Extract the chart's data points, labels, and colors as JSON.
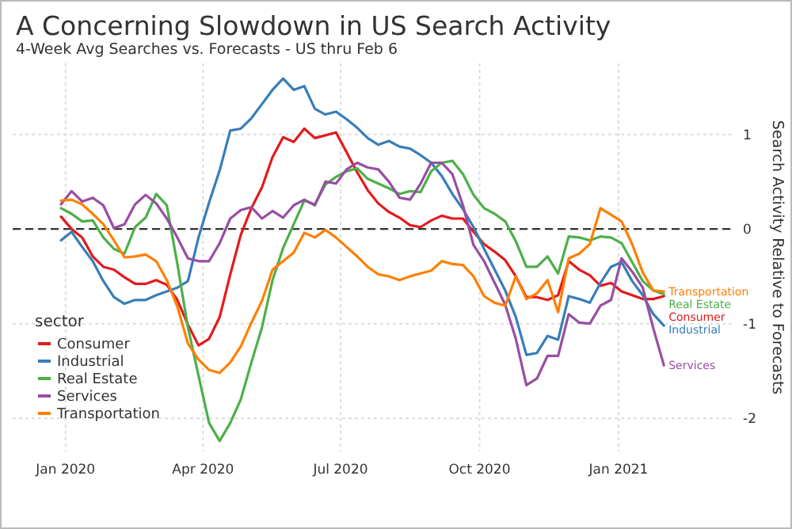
{
  "chart_data": {
    "type": "line",
    "title": "A Concerning Slowdown in US Search Activity",
    "subtitle": "4-Week Avg Searches vs. Forecasts - US thru Feb 6",
    "ylabel": "Search Activity Relative to Forecasts",
    "legend_title": "sector",
    "legend": "bottom left",
    "grid": true,
    "line_style": "solid",
    "marker": "none",
    "xlim": [
      "2019-11-27",
      "2021-03-18"
    ],
    "ylim": [
      -2.35,
      1.75
    ],
    "xticks": [
      {
        "value": "2020-01-01",
        "label": "Jan 2020"
      },
      {
        "value": "2020-04-01",
        "label": "Apr 2020"
      },
      {
        "value": "2020-07-01",
        "label": "Jul 2020"
      },
      {
        "value": "2020-10-01",
        "label": "Oct 2020"
      },
      {
        "value": "2021-01-01",
        "label": "Jan 2021"
      }
    ],
    "yticks": [
      -2,
      -1,
      0,
      1
    ],
    "ref_lines": [
      {
        "axis": "y",
        "value": 0,
        "color": "#333333",
        "line_style": "dashed"
      }
    ],
    "x": [
      "2019-12-29",
      "2020-01-05",
      "2020-01-12",
      "2020-01-19",
      "2020-01-26",
      "2020-02-02",
      "2020-02-09",
      "2020-02-16",
      "2020-02-23",
      "2020-03-01",
      "2020-03-08",
      "2020-03-15",
      "2020-03-22",
      "2020-03-29",
      "2020-04-05",
      "2020-04-12",
      "2020-04-19",
      "2020-04-26",
      "2020-05-03",
      "2020-05-10",
      "2020-05-17",
      "2020-05-24",
      "2020-05-31",
      "2020-06-07",
      "2020-06-14",
      "2020-06-21",
      "2020-06-28",
      "2020-07-05",
      "2020-07-12",
      "2020-07-19",
      "2020-07-26",
      "2020-08-02",
      "2020-08-09",
      "2020-08-16",
      "2020-08-23",
      "2020-08-30",
      "2020-09-06",
      "2020-09-13",
      "2020-09-20",
      "2020-09-27",
      "2020-10-04",
      "2020-10-11",
      "2020-10-18",
      "2020-10-25",
      "2020-11-01",
      "2020-11-08",
      "2020-11-15",
      "2020-11-22",
      "2020-11-29",
      "2020-12-06",
      "2020-12-13",
      "2020-12-20",
      "2020-12-27",
      "2021-01-03",
      "2021-01-10",
      "2021-01-17",
      "2021-01-24",
      "2021-01-31"
    ],
    "series": [
      {
        "name": "Consumer",
        "color": "#e41a1c",
        "values": [
          0.13,
          0,
          -0.09,
          -0.29,
          -0.4,
          -0.43,
          -0.51,
          -0.58,
          -0.58,
          -0.54,
          -0.59,
          -0.75,
          -1.01,
          -1.23,
          -1.16,
          -0.93,
          -0.48,
          -0.06,
          0.22,
          0.44,
          0.76,
          0.97,
          0.92,
          1.06,
          0.96,
          0.99,
          1.02,
          0.81,
          0.6,
          0.41,
          0.27,
          0.18,
          0.12,
          0.04,
          0.02,
          0.09,
          0.14,
          0.11,
          0.11,
          -0.03,
          -0.16,
          -0.24,
          -0.33,
          -0.5,
          -0.72,
          -0.72,
          -0.75,
          -0.7,
          -0.34,
          -0.43,
          -0.49,
          -0.6,
          -0.57,
          -0.66,
          -0.7,
          -0.74,
          -0.74,
          -0.71
        ]
      },
      {
        "name": "Industrial",
        "color": "#377eb8",
        "values": [
          -0.12,
          -0.03,
          -0.19,
          -0.34,
          -0.55,
          -0.72,
          -0.79,
          -0.75,
          -0.75,
          -0.7,
          -0.66,
          -0.62,
          -0.55,
          -0.09,
          0.28,
          0.62,
          1.04,
          1.06,
          1.17,
          1.32,
          1.47,
          1.59,
          1.47,
          1.51,
          1.27,
          1.21,
          1.24,
          1.16,
          1.07,
          0.96,
          0.89,
          0.93,
          0.87,
          0.85,
          0.78,
          0.7,
          0.56,
          0.37,
          0.21,
          0.02,
          -0.21,
          -0.43,
          -0.65,
          -0.93,
          -1.33,
          -1.31,
          -1.13,
          -1.17,
          -0.71,
          -0.74,
          -0.78,
          -0.57,
          -0.4,
          -0.35,
          -0.55,
          -0.7,
          -0.9,
          -1.02
        ]
      },
      {
        "name": "Real Estate",
        "color": "#4daf4a",
        "values": [
          0.22,
          0.16,
          0.08,
          0.09,
          -0.09,
          -0.21,
          -0.26,
          0.02,
          0.12,
          0.37,
          0.25,
          -0.37,
          -1.04,
          -1.55,
          -2.05,
          -2.24,
          -2.05,
          -1.8,
          -1.41,
          -1.04,
          -0.54,
          -0.2,
          0.05,
          0.3,
          0.26,
          0.47,
          0.55,
          0.61,
          0.64,
          0.53,
          0.48,
          0.43,
          0.37,
          0.4,
          0.39,
          0.61,
          0.7,
          0.72,
          0.58,
          0.36,
          0.22,
          0.16,
          0.08,
          -0.13,
          -0.4,
          -0.4,
          -0.29,
          -0.47,
          -0.08,
          -0.09,
          -0.12,
          -0.08,
          -0.09,
          -0.15,
          -0.35,
          -0.55,
          -0.65,
          -0.69
        ]
      },
      {
        "name": "Services",
        "color": "#984ea3",
        "values": [
          0.26,
          0.4,
          0.29,
          0.33,
          0.25,
          0.01,
          0.05,
          0.26,
          0.36,
          0.27,
          0.11,
          -0.09,
          -0.31,
          -0.34,
          -0.34,
          -0.15,
          0.11,
          0.2,
          0.23,
          0.11,
          0.19,
          0.12,
          0.25,
          0.31,
          0.25,
          0.5,
          0.48,
          0.63,
          0.7,
          0.65,
          0.63,
          0.5,
          0.33,
          0.31,
          0.48,
          0.7,
          0.7,
          0.58,
          0.25,
          -0.17,
          -0.34,
          -0.57,
          -0.8,
          -1.16,
          -1.65,
          -1.58,
          -1.34,
          -1.34,
          -0.9,
          -0.99,
          -1,
          -0.81,
          -0.75,
          -0.31,
          -0.45,
          -0.62,
          -1.05,
          -1.44
        ]
      },
      {
        "name": "Transportation",
        "color": "#ff7f00",
        "values": [
          0.3,
          0.31,
          0.26,
          0.16,
          0.05,
          -0.12,
          -0.3,
          -0.29,
          -0.27,
          -0.34,
          -0.54,
          -0.82,
          -1.21,
          -1.38,
          -1.49,
          -1.52,
          -1.41,
          -1.24,
          -0.99,
          -0.76,
          -0.43,
          -0.34,
          -0.25,
          -0.04,
          -0.09,
          -0.01,
          -0.09,
          -0.19,
          -0.29,
          -0.4,
          -0.48,
          -0.5,
          -0.54,
          -0.5,
          -0.47,
          -0.44,
          -0.34,
          -0.37,
          -0.38,
          -0.5,
          -0.71,
          -0.78,
          -0.81,
          -0.5,
          -0.74,
          -0.68,
          -0.54,
          -0.88,
          -0.31,
          -0.26,
          -0.16,
          0.22,
          0.15,
          0.08,
          -0.16,
          -0.46,
          -0.65,
          -0.66
        ]
      }
    ]
  }
}
